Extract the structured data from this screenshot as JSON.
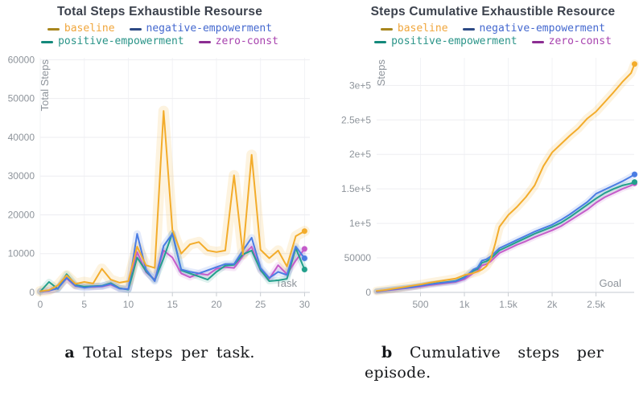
{
  "captions": {
    "a": {
      "label": "a",
      "text": "Total steps per task."
    },
    "b": {
      "label": "b",
      "line1": "Cumulative steps per",
      "line2": "episode."
    }
  },
  "chart_data": [
    {
      "type": "line",
      "title": "Total Steps Exhaustible Resourse",
      "xlabel": "Task",
      "ylabel": "Total Steps",
      "xlim": [
        0,
        30.6
      ],
      "ylim": [
        0,
        60500
      ],
      "grid": true,
      "legend_position": "top",
      "xticks": {
        "values": [
          0,
          5,
          10,
          15,
          20,
          25,
          30
        ],
        "labels": [
          "0",
          "5",
          "10",
          "15",
          "20",
          "25",
          "30"
        ]
      },
      "yticks": {
        "values": [
          0,
          10000,
          20000,
          30000,
          40000,
          50000,
          60000
        ],
        "labels": [
          "0",
          "10000",
          "20000",
          "30000",
          "40000",
          "50000",
          "60000"
        ]
      },
      "x": [
        0,
        1,
        2,
        3,
        4,
        5,
        6,
        7,
        8,
        9,
        10,
        11,
        12,
        13,
        14,
        15,
        16,
        17,
        18,
        19,
        20,
        21,
        22,
        23,
        24,
        25,
        26,
        27,
        28,
        29,
        30
      ],
      "series": [
        {
          "name": "baseline",
          "color": "#f3ac2b",
          "legend_marker": "#a8861d",
          "legend_text": "#f0a63c",
          "band_width": 13,
          "values": [
            300,
            600,
            1800,
            4400,
            2200,
            2700,
            2300,
            6100,
            3300,
            2500,
            2900,
            11800,
            7000,
            6300,
            46800,
            16100,
            10000,
            12400,
            13000,
            10800,
            10400,
            10800,
            30200,
            9800,
            35500,
            11000,
            8800,
            10800,
            6700,
            14500,
            15800
          ]
        },
        {
          "name": "negative-empowerment",
          "color": "#4a7ce3",
          "legend_marker": "#2d4a85",
          "legend_text": "#4468cf",
          "band_width": 9,
          "values": [
            200,
            500,
            1000,
            3800,
            1700,
            1200,
            1500,
            1600,
            2200,
            1000,
            800,
            15100,
            5900,
            2900,
            12000,
            15100,
            5900,
            5300,
            4900,
            5700,
            6500,
            7300,
            7300,
            10800,
            14100,
            6300,
            3700,
            5300,
            4500,
            11800,
            8800
          ]
        },
        {
          "name": "positive-empowerment",
          "color": "#23a08c",
          "legend_marker": "#14897b",
          "legend_text": "#2a9488",
          "band_width": 8,
          "values": [
            200,
            2700,
            900,
            4700,
            1900,
            1500,
            1600,
            1700,
            2400,
            1100,
            700,
            9000,
            5500,
            3100,
            8800,
            15300,
            5700,
            4900,
            4100,
            3300,
            5300,
            6900,
            7100,
            9800,
            10800,
            5800,
            2900,
            3100,
            3500,
            11400,
            5900
          ]
        },
        {
          "name": "zero-const",
          "color": "#c55cca",
          "legend_marker": "#8c2d92",
          "legend_text": "#a843af",
          "band_width": 8,
          "values": [
            200,
            400,
            1100,
            3600,
            1600,
            1400,
            1400,
            1500,
            2000,
            1000,
            900,
            10400,
            5200,
            3300,
            10800,
            9000,
            4900,
            3900,
            4900,
            4500,
            6100,
            6500,
            6300,
            9400,
            11800,
            5600,
            3500,
            7000,
            4700,
            8200,
            11200
          ]
        }
      ]
    },
    {
      "type": "line",
      "title": "Steps Cumulative Exhaustible Resource",
      "xlabel": "Goal",
      "ylabel": "Steps",
      "xlim": [
        0,
        2935
      ],
      "ylim": [
        0,
        340000
      ],
      "grid": true,
      "legend_position": "top",
      "xticks": {
        "values": [
          500,
          1000,
          1500,
          2000,
          2500
        ],
        "labels": [
          "500",
          "1k",
          "1.5k",
          "2k",
          "2.5k"
        ]
      },
      "yticks": {
        "values": [
          0,
          50000,
          100000,
          150000,
          200000,
          250000,
          300000
        ],
        "labels": [
          "0",
          "50000",
          "1e+5",
          "1.5e+5",
          "2e+5",
          "2.5e+5",
          "3e+5"
        ]
      },
      "x": [
        0,
        100,
        200,
        300,
        400,
        500,
        600,
        700,
        800,
        900,
        1000,
        1100,
        1150,
        1200,
        1250,
        1300,
        1350,
        1400,
        1500,
        1600,
        1700,
        1800,
        1900,
        2000,
        2100,
        2200,
        2300,
        2400,
        2500,
        2600,
        2700,
        2800,
        2900,
        2940
      ],
      "series": [
        {
          "name": "baseline",
          "color": "#f3ac2b",
          "legend_marker": "#a8861d",
          "legend_text": "#f0a63c",
          "band_width": 11,
          "values": [
            2000,
            3500,
            5500,
            7500,
            9500,
            11500,
            14000,
            16000,
            18000,
            20000,
            25000,
            28000,
            30000,
            33000,
            38000,
            48000,
            70000,
            95000,
            112000,
            124000,
            138000,
            155000,
            183000,
            203000,
            215000,
            227000,
            238000,
            252000,
            262000,
            276000,
            290000,
            305000,
            318000,
            331000
          ]
        },
        {
          "name": "negative-empowerment",
          "color": "#4a7ce3",
          "legend_marker": "#2d4a85",
          "legend_text": "#4468cf",
          "band_width": 8,
          "values": [
            1500,
            3000,
            4500,
            6000,
            7500,
            9500,
            11500,
            13000,
            14500,
            16000,
            21000,
            33000,
            36000,
            46000,
            48000,
            52000,
            58000,
            64000,
            70000,
            76000,
            82000,
            88000,
            93000,
            98000,
            105000,
            113000,
            122000,
            131000,
            143000,
            149000,
            155000,
            161000,
            168000,
            171000
          ]
        },
        {
          "name": "positive-empowerment",
          "color": "#23a08c",
          "legend_marker": "#14897b",
          "legend_text": "#2a9488",
          "band_width": 7,
          "values": [
            1800,
            3300,
            5000,
            6500,
            8000,
            10000,
            12000,
            13500,
            15000,
            16500,
            22000,
            31000,
            34000,
            43000,
            45000,
            49000,
            55000,
            61000,
            67000,
            73000,
            79000,
            85000,
            90000,
            95000,
            101000,
            109000,
            118000,
            127000,
            136000,
            144000,
            150000,
            155000,
            158000,
            160000
          ]
        },
        {
          "name": "zero-const",
          "color": "#c55cca",
          "legend_marker": "#8c2d92",
          "legend_text": "#a843af",
          "band_width": 7,
          "values": [
            1200,
            2700,
            4000,
            5500,
            7000,
            8500,
            10500,
            12000,
            13500,
            15000,
            19000,
            28000,
            31000,
            39000,
            41000,
            45000,
            51000,
            57000,
            63000,
            69000,
            74000,
            80000,
            85000,
            90000,
            96000,
            104000,
            112000,
            120000,
            130000,
            138000,
            144000,
            150000,
            155000,
            158000
          ]
        }
      ]
    }
  ]
}
